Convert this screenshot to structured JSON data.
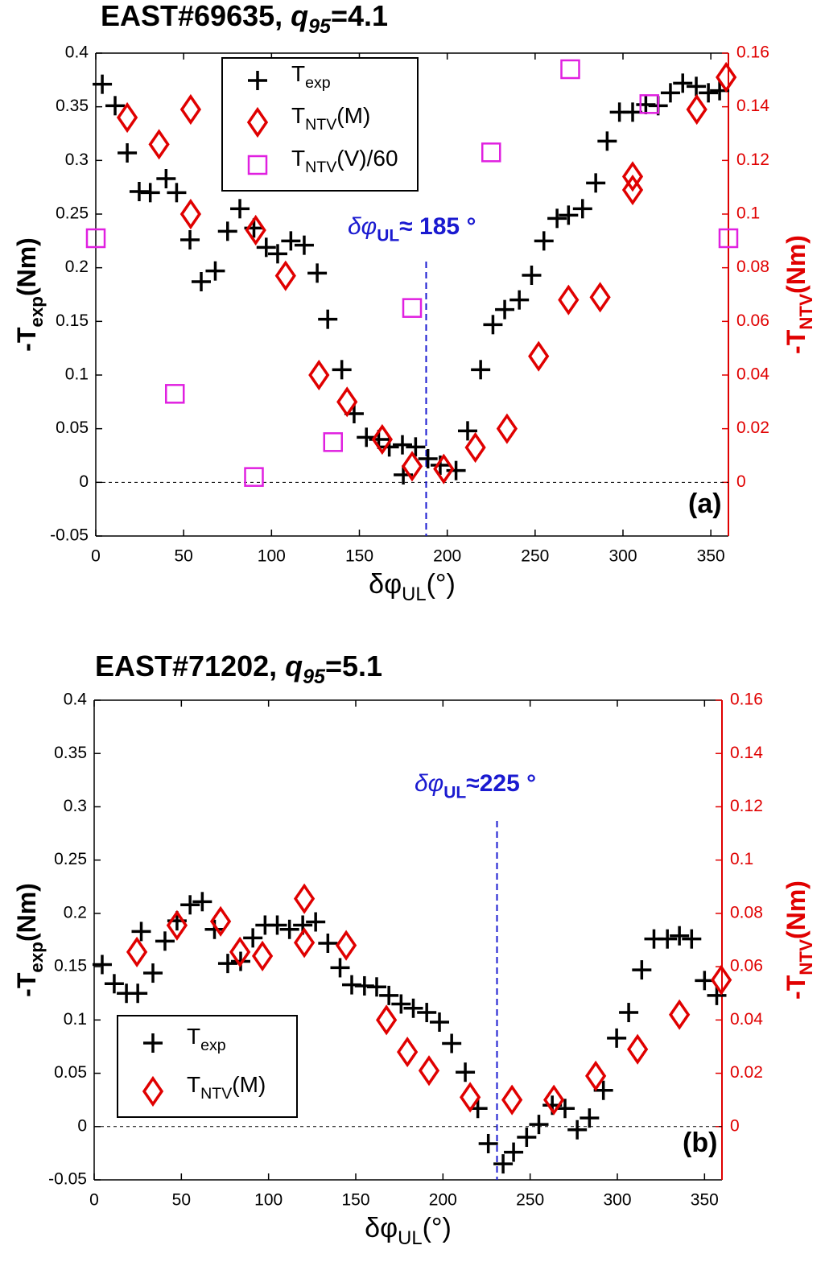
{
  "chart_data": [
    {
      "type": "scatter",
      "title": [
        "EAST#69635, ",
        "q",
        "95",
        "=4.1"
      ],
      "x_label": [
        "δφ",
        "UL",
        "(°)"
      ],
      "y_label": [
        "-T",
        "exp",
        "(Nm)"
      ],
      "y2_label": [
        "-T",
        "NTV",
        "(Nm)"
      ],
      "annotation": [
        "δφ",
        "UL",
        "≈ 185 °"
      ],
      "panel_label": "(a)",
      "vline": 188,
      "hline": 0,
      "xlim": [
        0,
        360
      ],
      "xticks": [
        0,
        50,
        100,
        150,
        200,
        250,
        300,
        350
      ],
      "ylim": [
        -0.05,
        0.4
      ],
      "yticks": [
        -0.05,
        0,
        0.05,
        0.1,
        0.15,
        0.2,
        0.25,
        0.3,
        0.35,
        0.4
      ],
      "y2lim": [
        -0.02,
        0.16
      ],
      "y2ticks": [
        0,
        0.02,
        0.04,
        0.06,
        0.08,
        0.1,
        0.12,
        0.14,
        0.16
      ],
      "y2_color": "#e00000",
      "legend": "top",
      "series": [
        {
          "name": [
            "T",
            "exp"
          ],
          "color": "#000000",
          "marker": "plus",
          "axis": "y",
          "x": [
            3.7,
            11,
            17.9,
            24.7,
            31,
            40,
            46,
            53.6,
            60,
            68,
            75,
            82,
            90,
            97,
            103.5,
            111,
            118.6,
            126,
            132,
            140,
            147,
            154,
            161,
            167,
            174.5,
            175,
            182,
            189,
            196,
            205,
            211.6,
            219,
            226,
            232.7,
            241,
            248,
            255,
            262.5,
            269,
            277,
            284.5,
            291,
            298,
            305.5,
            313,
            320,
            327,
            334,
            341.7,
            348.6,
            355
          ],
          "values": [
            0.371,
            0.351,
            0.307,
            0.271,
            0.27,
            0.283,
            0.27,
            0.226,
            0.187,
            0.197,
            0.234,
            0.255,
            0.237,
            0.219,
            0.213,
            0.225,
            0.221,
            0.195,
            0.152,
            0.105,
            0.064,
            0.042,
            0.04,
            0.033,
            0.035,
            0.007,
            0.033,
            0.022,
            0.016,
            0.011,
            0.048,
            0.105,
            0.147,
            0.161,
            0.17,
            0.193,
            0.225,
            0.246,
            0.249,
            0.255,
            0.279,
            0.318,
            0.345,
            0.345,
            0.352,
            0.351,
            0.363,
            0.372,
            0.369,
            0.363,
            0.365
          ]
        },
        {
          "name": [
            "T",
            "NTV",
            "(M)"
          ],
          "color": "#e00000",
          "marker": "diamond",
          "axis": "y2",
          "x": [
            17.9,
            36,
            54,
            54,
            91,
            108,
            127,
            143,
            163,
            180,
            198,
            216,
            234,
            252,
            269,
            287,
            305.5,
            305.5,
            342,
            358.7
          ],
          "values": [
            0.136,
            0.126,
            0.139,
            0.1,
            0.094,
            0.077,
            0.04,
            0.03,
            0.016,
            0.006,
            0.005,
            0.013,
            0.02,
            0.047,
            0.068,
            0.069,
            0.114,
            0.109,
            0.139,
            0.151
          ]
        },
        {
          "name": [
            "T",
            "NTV",
            "(V)/60"
          ],
          "color": "#e020e0",
          "marker": "square",
          "axis": "y2",
          "x": [
            0,
            45,
            90,
            135,
            180,
            225,
            270,
            315,
            360
          ],
          "values": [
            0.091,
            0.033,
            0.002,
            0.015,
            0.065,
            0.123,
            0.154,
            0.141,
            0.091
          ]
        }
      ]
    },
    {
      "type": "scatter",
      "title": [
        "EAST#71202, ",
        "q",
        "95",
        "=5.1"
      ],
      "x_label": [
        "δφ",
        "UL",
        "(°)"
      ],
      "y_label": [
        "-T",
        "exp",
        "(Nm)"
      ],
      "y2_label": [
        "-T",
        "NTV",
        "(Nm)"
      ],
      "annotation": [
        "δφ",
        "UL",
        "≈225 °"
      ],
      "panel_label": "(b)",
      "vline": 231,
      "hline": 0,
      "xlim": [
        0,
        360
      ],
      "xticks": [
        0,
        50,
        100,
        150,
        200,
        250,
        300,
        350
      ],
      "ylim": [
        -0.05,
        0.4
      ],
      "yticks": [
        -0.05,
        0,
        0.05,
        0.1,
        0.15,
        0.2,
        0.25,
        0.3,
        0.35,
        0.4
      ],
      "y2lim": [
        -0.02,
        0.16
      ],
      "y2ticks": [
        0,
        0.02,
        0.04,
        0.06,
        0.08,
        0.1,
        0.12,
        0.14,
        0.16
      ],
      "y2_color": "#e00000",
      "legend": "bottom-left",
      "series": [
        {
          "name": [
            "T",
            "exp"
          ],
          "color": "#000000",
          "marker": "plus",
          "axis": "y",
          "x": [
            4.6,
            11.5,
            18.5,
            25,
            27,
            33.7,
            40.6,
            47.5,
            55,
            62,
            69,
            76.6,
            84,
            91,
            98,
            105,
            112,
            119.6,
            127,
            134,
            141,
            147.7,
            155,
            162,
            169,
            176,
            183,
            190.7,
            198,
            205,
            212.8,
            220,
            226,
            234.5,
            240.5,
            248,
            255,
            262.7,
            270,
            277,
            284,
            292,
            299.6,
            306.5,
            314,
            321,
            328.7,
            335.6,
            342.6,
            350,
            357
          ],
          "values": [
            0.152,
            0.134,
            0.125,
            0.125,
            0.183,
            0.144,
            0.174,
            0.193,
            0.208,
            0.211,
            0.185,
            0.153,
            0.155,
            0.177,
            0.189,
            0.189,
            0.185,
            0.189,
            0.192,
            0.172,
            0.149,
            0.133,
            0.132,
            0.131,
            0.123,
            0.115,
            0.111,
            0.107,
            0.098,
            0.078,
            0.051,
            0.017,
            -0.016,
            -0.035,
            -0.024,
            -0.01,
            0.002,
            0.02,
            0.017,
            -0.003,
            0.008,
            0.034,
            0.083,
            0.107,
            0.147,
            0.176,
            0.176,
            0.179,
            0.176,
            0.137,
            0.123
          ]
        },
        {
          "name": [
            "T",
            "NTV",
            "(M)"
          ],
          "color": "#e00000",
          "marker": "diamond",
          "axis": "y2",
          "x": [
            24.5,
            47.5,
            72.5,
            83.6,
            96.5,
            120.5,
            120.5,
            144.5,
            167.6,
            179.6,
            192,
            215.6,
            239.6,
            263.6,
            287.6,
            311.6,
            335.6,
            359.6
          ],
          "values": [
            0.0655,
            0.0755,
            0.077,
            0.0655,
            0.064,
            0.0855,
            0.069,
            0.068,
            0.04,
            0.028,
            0.021,
            0.011,
            0.01,
            0.01,
            0.019,
            0.029,
            0.042,
            0.055
          ]
        }
      ]
    }
  ]
}
